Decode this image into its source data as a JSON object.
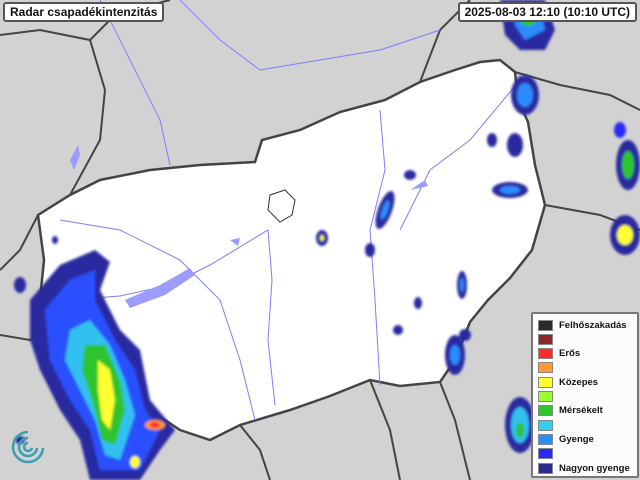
{
  "title": "Radar csapadékintenzitás",
  "timestamp": "2025-08-03 12:10 (10:10 UTC)",
  "legend": [
    {
      "color": "#2b2b2b",
      "label": "Felhőszakadás"
    },
    {
      "color": "#8b2a2a",
      "label": ""
    },
    {
      "color": "#ff2a2a",
      "label": "Erős"
    },
    {
      "color": "#ff9a30",
      "label": ""
    },
    {
      "color": "#ffff30",
      "label": "Közepes"
    },
    {
      "color": "#9aff30",
      "label": ""
    },
    {
      "color": "#2ec42e",
      "label": "Mérsékelt"
    },
    {
      "color": "#30d0f0",
      "label": ""
    },
    {
      "color": "#2a8cff",
      "label": "Gyenge"
    },
    {
      "color": "#2a2aff",
      "label": ""
    },
    {
      "color": "#2a2a90",
      "label": "Nagyon gyenge"
    }
  ],
  "colors": {
    "background": "#d4d4d4",
    "country": "#ffffff",
    "rivers": "#7d7dff",
    "borders": "#444444"
  },
  "logo_icon": "met-service-swirl-icon"
}
